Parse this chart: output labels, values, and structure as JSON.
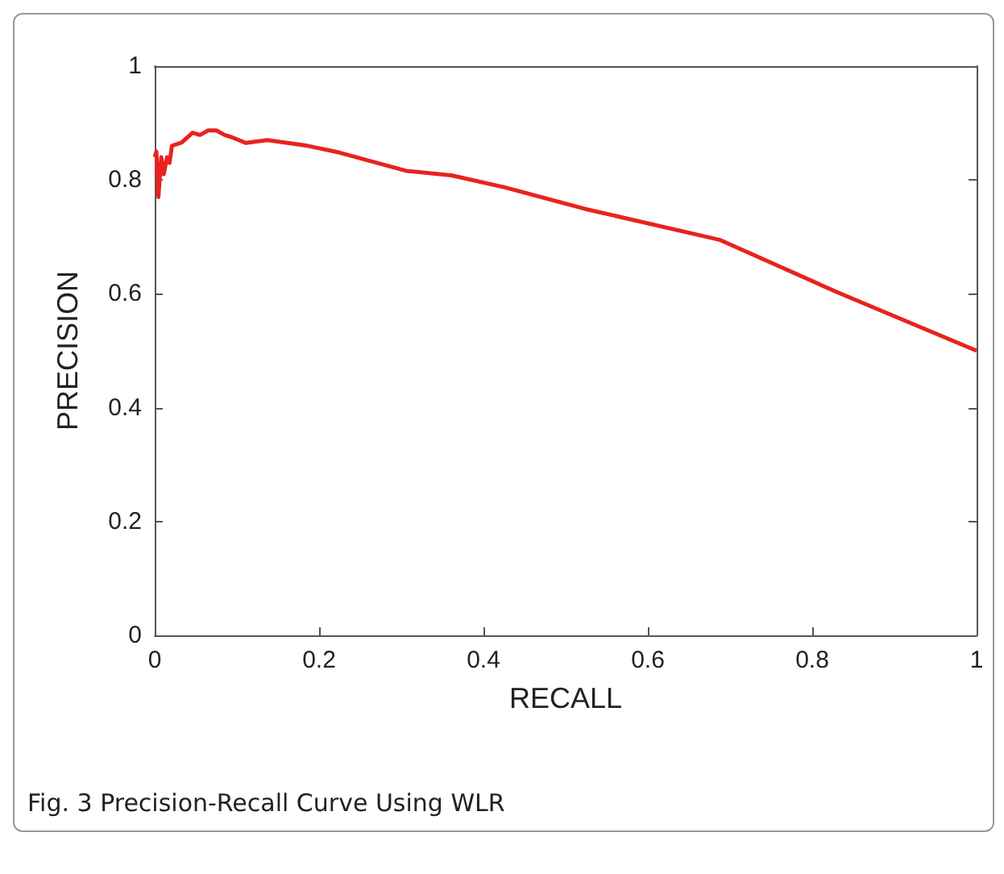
{
  "chart_data": {
    "type": "line",
    "xlabel": "RECALL",
    "ylabel": "PRECISION",
    "annotations": [
      "Fig. 3 Precision-Recall Curve Using WLR"
    ],
    "series": [
      {
        "color": "#e8231f",
        "x": [
          0,
          0.002,
          0.0045,
          0.008,
          0.011,
          0.015,
          0.018,
          0.021,
          0.033,
          0.046,
          0.055,
          0.065,
          0.075,
          0.085,
          0.094,
          0.111,
          0.137,
          0.186,
          0.225,
          0.306,
          0.361,
          0.426,
          0.524,
          0.687,
          0.83,
          1
        ],
        "values": [
          0.84,
          0.85,
          0.77,
          0.84,
          0.81,
          0.84,
          0.83,
          0.86,
          0.866,
          0.883,
          0.879,
          0.887,
          0.887,
          0.879,
          0.875,
          0.865,
          0.87,
          0.86,
          0.848,
          0.816,
          0.808,
          0.787,
          0.749,
          0.695,
          0.603,
          0.5
        ]
      }
    ],
    "xlim": [
      0,
      1
    ],
    "ylim": [
      0,
      1
    ],
    "xticks": [
      0,
      0.2,
      0.4,
      0.6,
      0.8,
      1
    ],
    "yticks": [
      0,
      0.2,
      0.4,
      0.6,
      0.8,
      1
    ],
    "grid": false,
    "marker": "none",
    "line_style": "solid"
  }
}
